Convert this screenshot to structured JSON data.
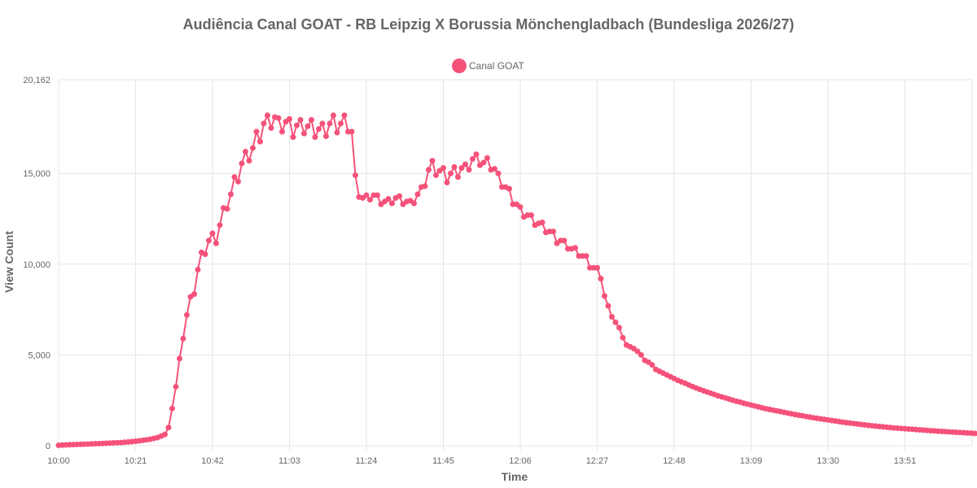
{
  "chart_data": {
    "type": "line",
    "title": "Audiência Canal GOAT - RB Leipzig X Borussia Mönchengladbach (Bundesliga 2026/27)",
    "xlabel": "Time",
    "ylabel": "View Count",
    "legend": {
      "position": "top-center",
      "entries": [
        "Canal GOAT"
      ]
    },
    "grid": true,
    "color": "#f5527a",
    "x_ticks": [
      "10:00",
      "10:21",
      "10:42",
      "11:03",
      "11:24",
      "11:45",
      "12:06",
      "12:27",
      "12:48",
      "13:09",
      "13:30",
      "13:51"
    ],
    "y_ticks": [
      "0",
      "5,000",
      "10,000",
      "15,000",
      "20,162"
    ],
    "ylim": [
      0,
      20162
    ],
    "x_interval_minutes": 1,
    "series": [
      {
        "name": "Canal GOAT",
        "x_start": "10:00",
        "values": [
          20,
          35,
          45,
          55,
          62,
          70,
          78,
          85,
          92,
          100,
          110,
          118,
          126,
          135,
          145,
          155,
          165,
          175,
          190,
          205,
          225,
          245,
          270,
          295,
          325,
          360,
          400,
          450,
          530,
          620,
          1000,
          2050,
          3250,
          4800,
          5900,
          7200,
          8200,
          8350,
          9700,
          10650,
          10550,
          11300,
          11700,
          11150,
          12150,
          13100,
          13050,
          13850,
          14800,
          14550,
          15550,
          16200,
          15700,
          16400,
          17300,
          16750,
          17750,
          18200,
          17500,
          18100,
          18050,
          17300,
          17850,
          18000,
          17000,
          17650,
          17950,
          17200,
          17600,
          17950,
          17000,
          17450,
          17750,
          17050,
          17750,
          18200,
          17250,
          17750,
          18200,
          17300,
          17300,
          14900,
          13700,
          13650,
          13800,
          13550,
          13800,
          13800,
          13300,
          13450,
          13600,
          13350,
          13650,
          13750,
          13300,
          13450,
          13500,
          13350,
          13850,
          14250,
          14300,
          15200,
          15700,
          14900,
          15150,
          15300,
          14500,
          15000,
          15350,
          14800,
          15300,
          15500,
          15200,
          15800,
          16050,
          15450,
          15600,
          15850,
          15200,
          15250,
          15000,
          14250,
          14250,
          14150,
          13300,
          13300,
          13150,
          12600,
          12700,
          12700,
          12150,
          12250,
          12300,
          11750,
          11800,
          11800,
          11150,
          11300,
          11300,
          10850,
          10850,
          10900,
          10450,
          10450,
          10450,
          9800,
          9800,
          9800,
          9200,
          8250,
          7700,
          7100,
          6800,
          6500,
          5950,
          5550,
          5450,
          5350,
          5200,
          5000,
          4700,
          4600,
          4450,
          4200,
          4100,
          4000,
          3900,
          3800,
          3700,
          3600,
          3520,
          3440,
          3350,
          3260,
          3180,
          3100,
          3030,
          2960,
          2890,
          2820,
          2750,
          2690,
          2630,
          2570,
          2510,
          2450,
          2400,
          2340,
          2290,
          2240,
          2190,
          2140,
          2090,
          2040,
          2000,
          1960,
          1920,
          1880,
          1840,
          1800,
          1760,
          1720,
          1680,
          1650,
          1610,
          1580,
          1540,
          1510,
          1480,
          1450,
          1420,
          1390,
          1360,
          1330,
          1300,
          1270,
          1250,
          1220,
          1200,
          1170,
          1150,
          1120,
          1100,
          1080,
          1060,
          1040,
          1020,
          1000,
          980,
          965,
          950,
          935,
          920,
          905,
          890,
          875,
          860,
          845,
          830,
          815,
          800,
          788,
          776,
          764,
          752,
          740,
          728,
          716,
          704,
          692,
          680,
          668,
          656,
          644,
          632,
          620
        ]
      }
    ]
  }
}
